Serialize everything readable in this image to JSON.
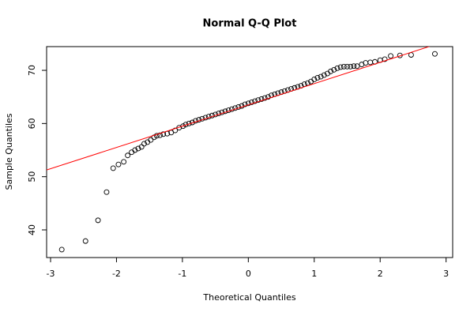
{
  "chart_data": {
    "type": "scatter",
    "title": "Normal Q-Q Plot",
    "x_label": "Theoretical Quantiles",
    "y_label": "Sample Quantiles",
    "xlim": [
      -3.06,
      3.1
    ],
    "ylim": [
      34.8,
      74.46
    ],
    "xticks": [
      -3,
      -2,
      -1,
      0,
      1,
      2,
      3
    ],
    "yticks": [
      40,
      50,
      60,
      70
    ],
    "point_color": "#000000",
    "reference_line": {
      "intercept": 63.5,
      "slope": 4.0,
      "color": "#ff0000"
    },
    "series": [
      {
        "x": [
          -2.83,
          -2.47,
          -2.28,
          -2.15,
          -2.05,
          -1.97,
          -1.89,
          -1.83,
          -1.77,
          -1.72,
          -1.67,
          -1.62,
          -1.58,
          -1.53,
          -1.48,
          -1.43,
          -1.39,
          -1.34,
          -1.29,
          -1.23,
          -1.17,
          -1.11,
          -1.05,
          -0.99,
          -0.95,
          -0.9,
          -0.85,
          -0.8,
          -0.75,
          -0.7,
          -0.65,
          -0.6,
          -0.55,
          -0.5,
          -0.45,
          -0.4,
          -0.35,
          -0.3,
          -0.25,
          -0.2,
          -0.15,
          -0.1,
          -0.05,
          0,
          0.05,
          0.1,
          0.15,
          0.2,
          0.25,
          0.3,
          0.35,
          0.4,
          0.45,
          0.5,
          0.55,
          0.6,
          0.65,
          0.7,
          0.75,
          0.8,
          0.85,
          0.9,
          0.95,
          1.0,
          1.05,
          1.1,
          1.15,
          1.2,
          1.25,
          1.3,
          1.35,
          1.4,
          1.45,
          1.5,
          1.55,
          1.6,
          1.65,
          1.72,
          1.78,
          1.85,
          1.92,
          2.0,
          2.07,
          2.16,
          2.3,
          2.47,
          2.83
        ],
        "values": [
          36.3,
          37.9,
          41.8,
          47.1,
          51.6,
          52.3,
          52.8,
          54.0,
          54.6,
          55.0,
          55.3,
          55.6,
          56.2,
          56.5,
          56.9,
          57.4,
          57.7,
          57.8,
          58.0,
          58.1,
          58.3,
          58.7,
          59.2,
          59.5,
          59.8,
          60.0,
          60.2,
          60.5,
          60.7,
          60.9,
          61.1,
          61.3,
          61.5,
          61.7,
          61.9,
          62.1,
          62.3,
          62.5,
          62.7,
          62.9,
          63.1,
          63.3,
          63.6,
          63.8,
          64.0,
          64.2,
          64.4,
          64.6,
          64.8,
          65.0,
          65.3,
          65.5,
          65.7,
          65.9,
          66.1,
          66.3,
          66.5,
          66.7,
          66.9,
          67.1,
          67.4,
          67.6,
          67.9,
          68.3,
          68.6,
          68.8,
          69.1,
          69.4,
          69.8,
          70.1,
          70.4,
          70.6,
          70.7,
          70.7,
          70.7,
          70.8,
          70.8,
          71.1,
          71.4,
          71.5,
          71.6,
          71.9,
          72.1,
          72.7,
          72.8,
          72.9,
          73.1
        ]
      }
    ]
  }
}
